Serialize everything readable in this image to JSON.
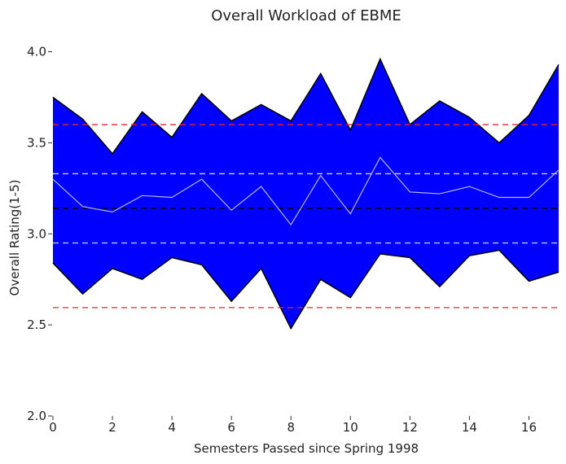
{
  "chart_data": {
    "type": "area",
    "title": "Overall Workload of EBME",
    "xlabel": "Semesters Passed since Spring 1998",
    "ylabel": "Overall Rating(1-5)",
    "xlim": [
      0,
      17
    ],
    "ylim": [
      2.0,
      4.15
    ],
    "x_ticks": [
      0,
      2,
      4,
      6,
      8,
      10,
      12,
      14,
      16
    ],
    "y_ticks": [
      2.0,
      2.5,
      3.0,
      3.5,
      4.0
    ],
    "y_tick_labels": [
      "2.0",
      "2.5",
      "3.0",
      "3.5",
      "4.0"
    ],
    "grid": false,
    "x": [
      0,
      1,
      2,
      3,
      4,
      5,
      6,
      7,
      8,
      9,
      10,
      11,
      12,
      13,
      14,
      15,
      16,
      17
    ],
    "series": [
      {
        "role": "upper",
        "values": [
          3.75,
          3.63,
          3.44,
          3.67,
          3.53,
          3.77,
          3.62,
          3.71,
          3.62,
          3.88,
          3.57,
          3.96,
          3.6,
          3.73,
          3.64,
          3.5,
          3.65,
          3.93
        ]
      },
      {
        "role": "mean",
        "values": [
          3.3,
          3.15,
          3.12,
          3.21,
          3.2,
          3.3,
          3.13,
          3.26,
          3.05,
          3.32,
          3.11,
          3.42,
          3.23,
          3.22,
          3.26,
          3.2,
          3.2,
          3.35
        ]
      },
      {
        "role": "lower",
        "values": [
          2.84,
          2.67,
          2.81,
          2.75,
          2.87,
          2.83,
          2.63,
          2.81,
          2.48,
          2.75,
          2.65,
          2.89,
          2.87,
          2.71,
          2.88,
          2.91,
          2.74,
          2.79
        ]
      }
    ],
    "reference_lines": [
      {
        "y": 3.14,
        "color": "#000000",
        "style": "dashed"
      },
      {
        "y": 3.33,
        "color": "#d0d0ff",
        "style": "dashed"
      },
      {
        "y": 2.95,
        "color": "#d0d0ff",
        "style": "dashed"
      },
      {
        "y": 3.6,
        "color": "#e8262a",
        "style": "dashed"
      },
      {
        "y": 2.595,
        "color": "#e8262a",
        "style": "dashed"
      }
    ],
    "colors": {
      "band": "#0000ff",
      "band_edge": "#000000",
      "mean_line": "#b4b4ff"
    }
  }
}
